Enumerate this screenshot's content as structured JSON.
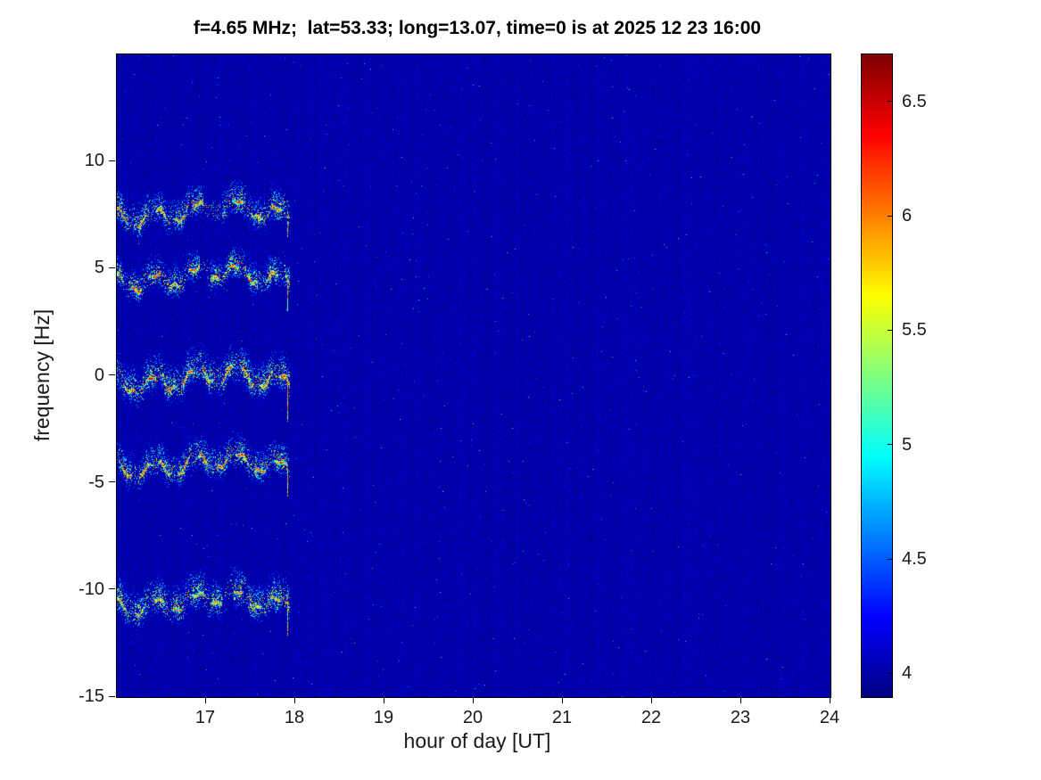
{
  "title": "f=4.65 MHz;  lat=53.33; long=13.07, time=0 is at 2025 12 23 16:00",
  "chart_data": {
    "type": "heatmap",
    "subtype": "doppler-spectrogram",
    "title": "f=4.65 MHz;  lat=53.33; long=13.07, time=0 is at 2025 12 23 16:00",
    "xlabel": "hour of day [UT]",
    "ylabel": "frequency [Hz]",
    "xlim": [
      16,
      24
    ],
    "ylim": [
      -15,
      15
    ],
    "xticks": [
      17,
      18,
      19,
      20,
      21,
      22,
      23,
      24
    ],
    "yticks": [
      10,
      5,
      0,
      -5,
      -10,
      -15
    ],
    "colormap": "jet",
    "clim": [
      3.9,
      6.71
    ],
    "colorbar_ticks": [
      4,
      4.5,
      5,
      5.5,
      6,
      6.5
    ],
    "grid": false,
    "legend": "none",
    "background_value": 3.98,
    "signal": {
      "description": "Five wavy Doppler traces visible only between ~16:00 and ~18:00 UT, background dark-blue noise elsewhere",
      "start_hour": 16.0,
      "end_hour": 17.93,
      "traces": [
        {
          "center_hz": 7.6,
          "peak_value": 6.35,
          "halo_hz": 0.45,
          "scale": 1.0,
          "gaps": [
            [
              16.97,
              17.17
            ]
          ],
          "spike_depth_hz": 1.1
        },
        {
          "center_hz": 4.55,
          "peak_value": 6.45,
          "halo_hz": 0.42,
          "scale": 1.05,
          "gaps": [
            [
              16.93,
              17.04
            ]
          ],
          "spike_depth_hz": 1.5
        },
        {
          "center_hz": -0.2,
          "peak_value": 6.6,
          "halo_hz": 0.5,
          "scale": 1.1,
          "gaps": [],
          "spike_depth_hz": 1.9
        },
        {
          "center_hz": -4.2,
          "peak_value": 6.5,
          "halo_hz": 0.45,
          "scale": 1.0,
          "gaps": [],
          "spike_depth_hz": 1.4
        },
        {
          "center_hz": -10.6,
          "peak_value": 6.15,
          "halo_hz": 0.5,
          "scale": 0.95,
          "gaps": [
            [
              17.18,
              17.3
            ]
          ],
          "spike_depth_hz": 1.5
        }
      ],
      "wiggle": {
        "amp_slow_hz": 0.22,
        "period_slow_h": 1.9,
        "amp_mid_hz": 0.34,
        "period_mid_h": 0.46,
        "amp_fast_hz": 0.12,
        "period_fast_h": 0.155
      }
    }
  }
}
